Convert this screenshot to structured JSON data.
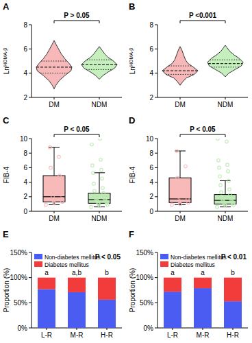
{
  "chart_data": [
    {
      "type": "violin",
      "panel": "A",
      "y_label": "Ln",
      "y_label_superscript": "HOMA-β",
      "categories": [
        "DM",
        "NDM"
      ],
      "annotation": "P > 0.05",
      "ylim": [
        2,
        8
      ],
      "yticks": [
        2,
        4,
        6,
        8
      ],
      "violins": [
        {
          "color": "#f6b8b8",
          "median": 4.5,
          "q1": 4.0,
          "q3": 5.0,
          "y": [
            2.7,
            3.0,
            3.4,
            3.8,
            4.2,
            4.5,
            4.8,
            5.2,
            5.6,
            6.0,
            6.4,
            6.7
          ],
          "density": [
            0,
            0.1,
            0.3,
            0.6,
            0.95,
            1.0,
            0.85,
            0.6,
            0.4,
            0.25,
            0.1,
            0
          ]
        },
        {
          "color": "#c6efbe",
          "median": 4.7,
          "q1": 4.3,
          "q3": 5.1,
          "y": [
            3.5,
            3.8,
            4.1,
            4.4,
            4.7,
            5.0,
            5.3,
            5.6,
            5.9,
            6.2
          ],
          "density": [
            0,
            0.2,
            0.5,
            0.85,
            1.0,
            0.8,
            0.5,
            0.3,
            0.15,
            0
          ]
        }
      ]
    },
    {
      "type": "violin",
      "panel": "B",
      "y_label": "Ln",
      "y_label_superscript": "HOMA-β",
      "categories": [
        "DM",
        "NDM"
      ],
      "annotation": "P <0.001",
      "ylim": [
        2,
        8
      ],
      "yticks": [
        2,
        4,
        6,
        8
      ],
      "violins": [
        {
          "color": "#f6b8b8",
          "median": 4.2,
          "q1": 3.9,
          "q3": 4.6,
          "y": [
            3.0,
            3.3,
            3.6,
            3.9,
            4.2,
            4.5,
            4.8,
            5.1,
            5.5,
            5.9,
            6.2
          ],
          "density": [
            0,
            0.15,
            0.35,
            0.8,
            1.0,
            0.75,
            0.45,
            0.3,
            0.2,
            0.1,
            0
          ]
        },
        {
          "color": "#c6efbe",
          "median": 4.8,
          "q1": 4.5,
          "q3": 5.1,
          "y": [
            3.7,
            4.0,
            4.3,
            4.6,
            4.9,
            5.2,
            5.5,
            5.8,
            6.1,
            6.3
          ],
          "density": [
            0,
            0.2,
            0.55,
            0.9,
            1.0,
            0.8,
            0.5,
            0.25,
            0.1,
            0
          ]
        }
      ]
    },
    {
      "type": "box",
      "panel": "C",
      "y_label": "FIB-4",
      "categories": [
        "DM",
        "NDM"
      ],
      "annotation": "P < 0.05",
      "ylim": [
        0,
        10
      ],
      "yticks": [
        0,
        2,
        4,
        6,
        8,
        10
      ],
      "boxes": [
        {
          "color": "#f8b9b9",
          "whisker_low": 0.9,
          "q1": 1.3,
          "median": 2.0,
          "q3": 4.9,
          "whisker_high": 8.8,
          "points": [
            0.9,
            1.1,
            1.3,
            1.5,
            1.7,
            2.0,
            2.3,
            2.8,
            3.5,
            4.2,
            4.9,
            6.0,
            7.5,
            8.8
          ]
        },
        {
          "color": "#bde9b4",
          "whisker_low": 0.6,
          "q1": 1.1,
          "median": 1.6,
          "q3": 2.5,
          "whisker_high": 5.3,
          "points": [
            0.6,
            0.8,
            0.9,
            1.0,
            1.1,
            1.2,
            1.3,
            1.4,
            1.5,
            1.6,
            1.7,
            1.8,
            2.0,
            2.2,
            2.5,
            2.8,
            3.2,
            3.8,
            4.5,
            5.3,
            5.7,
            6.3,
            7.1,
            9.2,
            10.0
          ]
        }
      ]
    },
    {
      "type": "box",
      "panel": "D",
      "y_label": "FIB-4",
      "categories": [
        "DM",
        "NDM"
      ],
      "annotation": "P < 0.05",
      "ylim": [
        0,
        10
      ],
      "yticks": [
        0,
        2,
        4,
        6,
        8,
        10
      ],
      "boxes": [
        {
          "color": "#f8b9b9",
          "whisker_low": 0.9,
          "q1": 1.2,
          "median": 1.7,
          "q3": 4.6,
          "whisker_high": 8.3,
          "points": [
            0.9,
            1.0,
            1.2,
            1.4,
            1.7,
            2.0,
            2.5,
            3.2,
            4.0,
            4.6,
            6.2,
            8.3
          ]
        },
        {
          "color": "#bde9b4",
          "whisker_low": 0.6,
          "q1": 1.0,
          "median": 1.5,
          "q3": 2.3,
          "whisker_high": 4.2,
          "points": [
            0.6,
            0.8,
            0.9,
            1.0,
            1.1,
            1.2,
            1.3,
            1.4,
            1.5,
            1.6,
            1.8,
            2.0,
            2.3,
            2.6,
            3.0,
            3.6,
            4.2,
            4.8,
            5.5,
            6.0,
            6.4,
            7.0,
            9.6,
            10.0
          ]
        }
      ]
    },
    {
      "type": "bar",
      "stacked": true,
      "panel": "E",
      "y_label": "Proportion (%)",
      "categories": [
        "L-R",
        "M-R",
        "H-R"
      ],
      "annotation": "P < 0.05",
      "legend": "top-left",
      "group_letters": [
        "a",
        "a,b",
        "b"
      ],
      "ylim": [
        0,
        150
      ],
      "yticks": [
        {
          "value": 0,
          "label": "0%"
        },
        {
          "value": 50,
          "label": "50%"
        },
        {
          "value": 100,
          "label": "100%"
        },
        {
          "value": 150,
          "label": "150%"
        }
      ],
      "series": [
        {
          "name": "Non-diabetes mellitus",
          "color": "#4a5cf2",
          "values": [
            77,
            71,
            56
          ]
        },
        {
          "name": "Diabetes mellitus",
          "color": "#f23b3b",
          "values": [
            23,
            29,
            44
          ]
        }
      ]
    },
    {
      "type": "bar",
      "stacked": true,
      "panel": "F",
      "y_label": "Proportion (%)",
      "categories": [
        "L-R",
        "M-R",
        "H-R"
      ],
      "annotation": "P < 0.01",
      "legend": "top-left",
      "group_letters": [
        "a",
        "a",
        "b"
      ],
      "ylim": [
        0,
        150
      ],
      "yticks": [
        {
          "value": 0,
          "label": "0%"
        },
        {
          "value": 50,
          "label": "50%"
        },
        {
          "value": 100,
          "label": "100%"
        },
        {
          "value": 150,
          "label": "150%"
        }
      ],
      "series": [
        {
          "name": "Non-diabetes mellitus",
          "color": "#4a5cf2",
          "values": [
            72,
            79,
            53
          ]
        },
        {
          "name": "Diabetes mellitus",
          "color": "#f23b3b",
          "values": [
            28,
            21,
            47
          ]
        }
      ]
    }
  ]
}
